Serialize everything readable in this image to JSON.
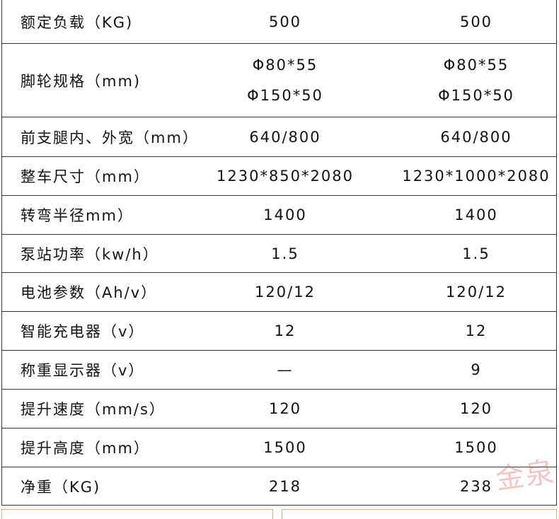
{
  "table": {
    "rows": [
      {
        "label": "额定负载（KG)",
        "values": [
          "500",
          "500"
        ]
      },
      {
        "label": "脚轮规格（mm)",
        "values": [
          [
            "Φ80*55",
            "Φ150*50"
          ],
          [
            "Φ80*55",
            "Φ150*50"
          ]
        ]
      },
      {
        "label": "前支腿内、外宽（mm）",
        "values": [
          "640/800",
          "640/800"
        ]
      },
      {
        "label": "整车尺寸（mm）",
        "values": [
          "1230*850*2080",
          "1230*1000*2080"
        ]
      },
      {
        "label": "转弯半径mm）",
        "values": [
          "1400",
          "1400"
        ]
      },
      {
        "label": "泵站功率（kw/h）",
        "values": [
          "1.5",
          "1.5"
        ]
      },
      {
        "label": "电池参数（Ah/v）",
        "values": [
          "120/12",
          "120/12"
        ]
      },
      {
        "label": "智能充电器（v）",
        "values": [
          "12",
          "12"
        ]
      },
      {
        "label": "称重显示器（v）",
        "values": [
          "—",
          "9"
        ]
      },
      {
        "label": "提升速度（mm/s）",
        "values": [
          "120",
          "120"
        ]
      },
      {
        "label": "提升高度（mm）",
        "values": [
          "1500",
          "1500"
        ]
      },
      {
        "label": "净重（KG)",
        "values": [
          "218",
          "238"
        ]
      }
    ]
  },
  "watermark": "金泉"
}
